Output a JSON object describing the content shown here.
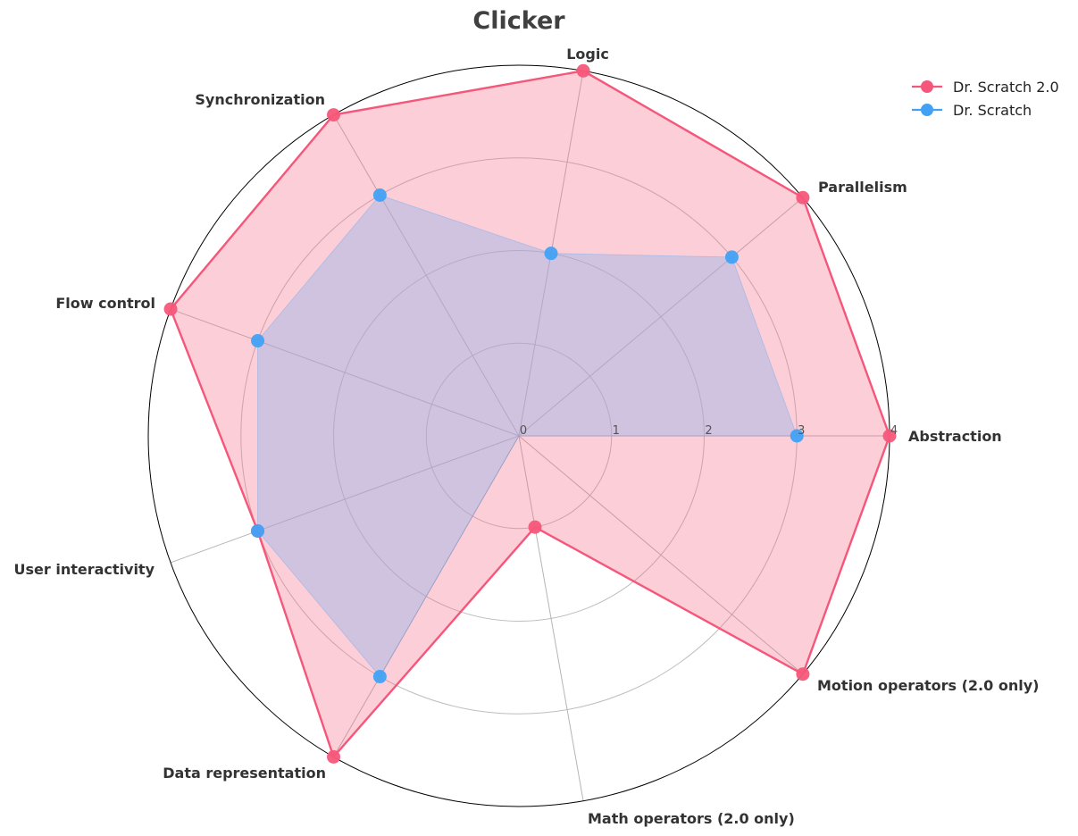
{
  "chart_data": {
    "type": "radar",
    "title": "Clicker",
    "axes": [
      "Abstraction",
      "Parallelism",
      "Logic",
      "Synchronization",
      "Flow control",
      "User interactivity",
      "Data representation",
      "Math operators (2.0 only)",
      "Motion operators (2.0 only)"
    ],
    "radial_ticks": [
      "0",
      "1",
      "2",
      "3",
      "4"
    ],
    "rlim": [
      0,
      4
    ],
    "grid": true,
    "legend_position": "top-right",
    "series": [
      {
        "name": "Dr. Scratch 2.0",
        "color": "#f5577a",
        "fill": "#f76b8a",
        "values": [
          4,
          4,
          4,
          4,
          4,
          3,
          4,
          1,
          4
        ]
      },
      {
        "name": "Dr. Scratch",
        "color": "#42a1f5",
        "fill": "#9bb5e8",
        "values": [
          3,
          3,
          2,
          3,
          3,
          3,
          3,
          0,
          0
        ]
      }
    ]
  }
}
